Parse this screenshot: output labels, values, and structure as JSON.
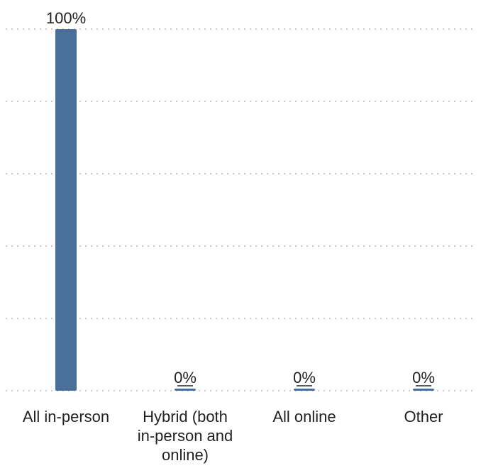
{
  "chart_data": {
    "type": "bar",
    "categories": [
      "All in-person",
      "Hybrid (both in-person and online)",
      "All online",
      "Other"
    ],
    "category_lines": [
      [
        "All in-person"
      ],
      [
        "Hybrid (both",
        "in-person and",
        "online)"
      ],
      [
        "All online"
      ],
      [
        "Other"
      ]
    ],
    "values": [
      100,
      0,
      0,
      0
    ],
    "value_labels": [
      "100%",
      "0%",
      "0%",
      "0%"
    ],
    "underlined_value_labels": [
      false,
      true,
      true,
      true
    ],
    "ylim": [
      0,
      100
    ],
    "grid": true,
    "grid_style": "dotted horizontal",
    "bar_color": "#4a6f99",
    "title": "",
    "xlabel": "",
    "ylabel": ""
  }
}
